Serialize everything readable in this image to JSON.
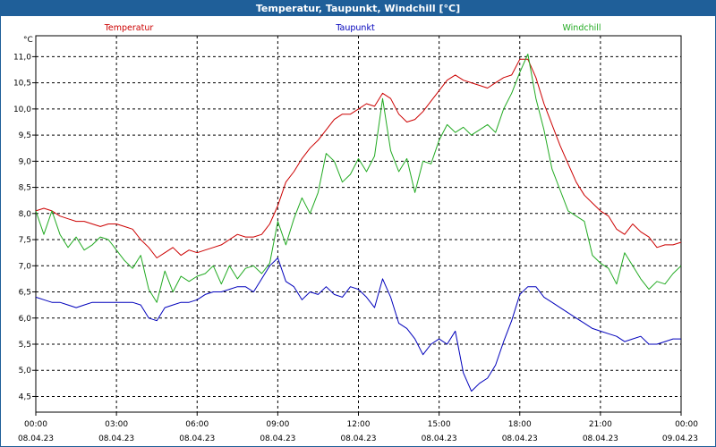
{
  "window": {
    "title": "Temperatur, Taupunkt, Windchill [°C]"
  },
  "chart_data": {
    "type": "line",
    "title": "Temperatur, Taupunkt, Windchill [°C]",
    "ylabel": "°C",
    "xlabel": "",
    "ylim": [
      4.2,
      11.4
    ],
    "xlim": [
      0,
      24
    ],
    "grid": true,
    "yticks": [
      4.5,
      5.0,
      5.5,
      6.0,
      6.5,
      7.0,
      7.5,
      8.0,
      8.5,
      9.0,
      9.5,
      10.0,
      10.5,
      11.0
    ],
    "ytick_labels": [
      "4,5",
      "5,0",
      "5,5",
      "6,0",
      "6,5",
      "7,0",
      "7,5",
      "8,0",
      "8,5",
      "9,0",
      "9,5",
      "10,0",
      "10,5",
      "11,0"
    ],
    "xticks": [
      {
        "hour": 0,
        "time": "00:00",
        "date": "08.04.23"
      },
      {
        "hour": 3,
        "time": "03:00",
        "date": "08.04.23"
      },
      {
        "hour": 6,
        "time": "06:00",
        "date": "08.04.23"
      },
      {
        "hour": 9,
        "time": "09:00",
        "date": "08.04.23"
      },
      {
        "hour": 12,
        "time": "12:00",
        "date": "08.04.23"
      },
      {
        "hour": 15,
        "time": "15:00",
        "date": "08.04.23"
      },
      {
        "hour": 18,
        "time": "18:00",
        "date": "08.04.23"
      },
      {
        "hour": 21,
        "time": "21:00",
        "date": "08.04.23"
      },
      {
        "hour": 24,
        "time": "00:00",
        "date": "09.04.23"
      }
    ],
    "legend": [
      {
        "name": "Temperatur",
        "color": "#cc0000"
      },
      {
        "name": "Taupunkt",
        "color": "#0000bb"
      },
      {
        "name": "Windchill",
        "color": "#22aa22"
      }
    ],
    "series": [
      {
        "name": "Temperatur",
        "color": "#cc0000",
        "x": [
          0,
          0.3,
          0.6,
          0.9,
          1.2,
          1.5,
          1.8,
          2.1,
          2.4,
          2.7,
          3.0,
          3.3,
          3.6,
          3.9,
          4.2,
          4.5,
          4.8,
          5.1,
          5.4,
          5.7,
          6.0,
          6.3,
          6.6,
          6.9,
          7.2,
          7.5,
          7.8,
          8.1,
          8.4,
          8.7,
          9.0,
          9.3,
          9.6,
          9.9,
          10.2,
          10.5,
          10.8,
          11.1,
          11.4,
          11.7,
          12.0,
          12.3,
          12.6,
          12.9,
          13.2,
          13.5,
          13.8,
          14.1,
          14.4,
          14.7,
          15.0,
          15.3,
          15.6,
          15.9,
          16.2,
          16.5,
          16.8,
          17.1,
          17.4,
          17.7,
          18.0,
          18.3,
          18.6,
          18.9,
          19.2,
          19.5,
          19.8,
          20.1,
          20.4,
          20.7,
          21.0,
          21.3,
          21.6,
          21.9,
          22.2,
          22.5,
          22.8,
          23.1,
          23.4,
          23.7,
          24.0
        ],
        "values": [
          8.05,
          8.1,
          8.05,
          7.95,
          7.9,
          7.85,
          7.85,
          7.8,
          7.75,
          7.8,
          7.8,
          7.75,
          7.7,
          7.5,
          7.35,
          7.15,
          7.25,
          7.35,
          7.2,
          7.3,
          7.25,
          7.3,
          7.35,
          7.4,
          7.5,
          7.6,
          7.55,
          7.55,
          7.6,
          7.8,
          8.15,
          8.6,
          8.8,
          9.05,
          9.25,
          9.4,
          9.6,
          9.8,
          9.9,
          9.9,
          10.0,
          10.1,
          10.05,
          10.3,
          10.2,
          9.9,
          9.75,
          9.8,
          9.95,
          10.15,
          10.35,
          10.55,
          10.65,
          10.55,
          10.5,
          10.45,
          10.4,
          10.5,
          10.6,
          10.65,
          10.95,
          10.95,
          10.6,
          10.1,
          9.7,
          9.3,
          8.95,
          8.6,
          8.35,
          8.2,
          8.05,
          7.95,
          7.7,
          7.6,
          7.8,
          7.65,
          7.55,
          7.35,
          7.4,
          7.4,
          7.45
        ]
      },
      {
        "name": "Taupunkt",
        "color": "#0000bb",
        "x": [
          0,
          0.3,
          0.6,
          0.9,
          1.2,
          1.5,
          1.8,
          2.1,
          2.4,
          2.7,
          3.0,
          3.3,
          3.6,
          3.9,
          4.2,
          4.5,
          4.8,
          5.1,
          5.4,
          5.7,
          6.0,
          6.3,
          6.6,
          6.9,
          7.2,
          7.5,
          7.8,
          8.1,
          8.4,
          8.7,
          9.0,
          9.3,
          9.6,
          9.9,
          10.2,
          10.5,
          10.8,
          11.1,
          11.4,
          11.7,
          12.0,
          12.3,
          12.6,
          12.9,
          13.2,
          13.5,
          13.8,
          14.1,
          14.4,
          14.7,
          15.0,
          15.3,
          15.6,
          15.9,
          16.2,
          16.5,
          16.8,
          17.1,
          17.4,
          17.7,
          18.0,
          18.3,
          18.6,
          18.9,
          19.2,
          19.5,
          19.8,
          20.1,
          20.4,
          20.7,
          21.0,
          21.3,
          21.6,
          21.9,
          22.2,
          22.5,
          22.8,
          23.1,
          23.4,
          23.7,
          24.0
        ],
        "values": [
          6.4,
          6.35,
          6.3,
          6.3,
          6.25,
          6.2,
          6.25,
          6.3,
          6.3,
          6.3,
          6.3,
          6.3,
          6.3,
          6.25,
          6.0,
          5.95,
          6.2,
          6.25,
          6.3,
          6.3,
          6.35,
          6.45,
          6.5,
          6.5,
          6.55,
          6.6,
          6.6,
          6.5,
          6.75,
          7.0,
          7.15,
          6.7,
          6.6,
          6.35,
          6.5,
          6.45,
          6.6,
          6.45,
          6.4,
          6.6,
          6.55,
          6.4,
          6.2,
          6.75,
          6.4,
          5.9,
          5.8,
          5.6,
          5.3,
          5.5,
          5.6,
          5.5,
          5.75,
          4.95,
          4.6,
          4.75,
          4.85,
          5.1,
          5.55,
          5.95,
          6.45,
          6.6,
          6.6,
          6.4,
          6.3,
          6.2,
          6.1,
          6.0,
          5.9,
          5.8,
          5.75,
          5.7,
          5.65,
          5.55,
          5.6,
          5.65,
          5.5,
          5.5,
          5.55,
          5.6,
          5.6
        ]
      },
      {
        "name": "Windchill",
        "color": "#22aa22",
        "x": [
          0,
          0.3,
          0.6,
          0.9,
          1.2,
          1.5,
          1.8,
          2.1,
          2.4,
          2.7,
          3.0,
          3.3,
          3.6,
          3.9,
          4.2,
          4.5,
          4.8,
          5.1,
          5.4,
          5.7,
          6.0,
          6.3,
          6.6,
          6.9,
          7.2,
          7.5,
          7.8,
          8.1,
          8.4,
          8.7,
          9.0,
          9.3,
          9.6,
          9.9,
          10.2,
          10.5,
          10.8,
          11.1,
          11.4,
          11.7,
          12.0,
          12.3,
          12.6,
          12.9,
          13.2,
          13.5,
          13.8,
          14.1,
          14.4,
          14.7,
          15.0,
          15.3,
          15.6,
          15.9,
          16.2,
          16.5,
          16.8,
          17.1,
          17.4,
          17.7,
          18.0,
          18.3,
          18.6,
          18.9,
          19.2,
          19.5,
          19.8,
          20.1,
          20.4,
          20.7,
          21.0,
          21.3,
          21.6,
          21.9,
          22.2,
          22.5,
          22.8,
          23.1,
          23.4,
          23.7,
          24.0
        ],
        "values": [
          8.05,
          7.6,
          8.05,
          7.6,
          7.35,
          7.55,
          7.3,
          7.4,
          7.55,
          7.5,
          7.3,
          7.1,
          6.95,
          7.2,
          6.55,
          6.3,
          6.9,
          6.5,
          6.8,
          6.7,
          6.8,
          6.85,
          7.0,
          6.65,
          7.0,
          6.75,
          6.95,
          7.0,
          6.85,
          7.05,
          7.85,
          7.4,
          7.9,
          8.3,
          8.0,
          8.4,
          9.15,
          9.0,
          8.6,
          8.75,
          9.05,
          8.8,
          9.1,
          10.2,
          9.2,
          8.8,
          9.05,
          8.4,
          9.0,
          8.95,
          9.4,
          9.7,
          9.55,
          9.65,
          9.5,
          9.6,
          9.7,
          9.55,
          10.0,
          10.3,
          10.7,
          11.05,
          10.2,
          9.6,
          8.85,
          8.45,
          8.05,
          7.95,
          7.85,
          7.2,
          7.05,
          6.95,
          6.65,
          7.25,
          7.0,
          6.75,
          6.55,
          6.7,
          6.65,
          6.85,
          7.0
        ]
      }
    ]
  }
}
